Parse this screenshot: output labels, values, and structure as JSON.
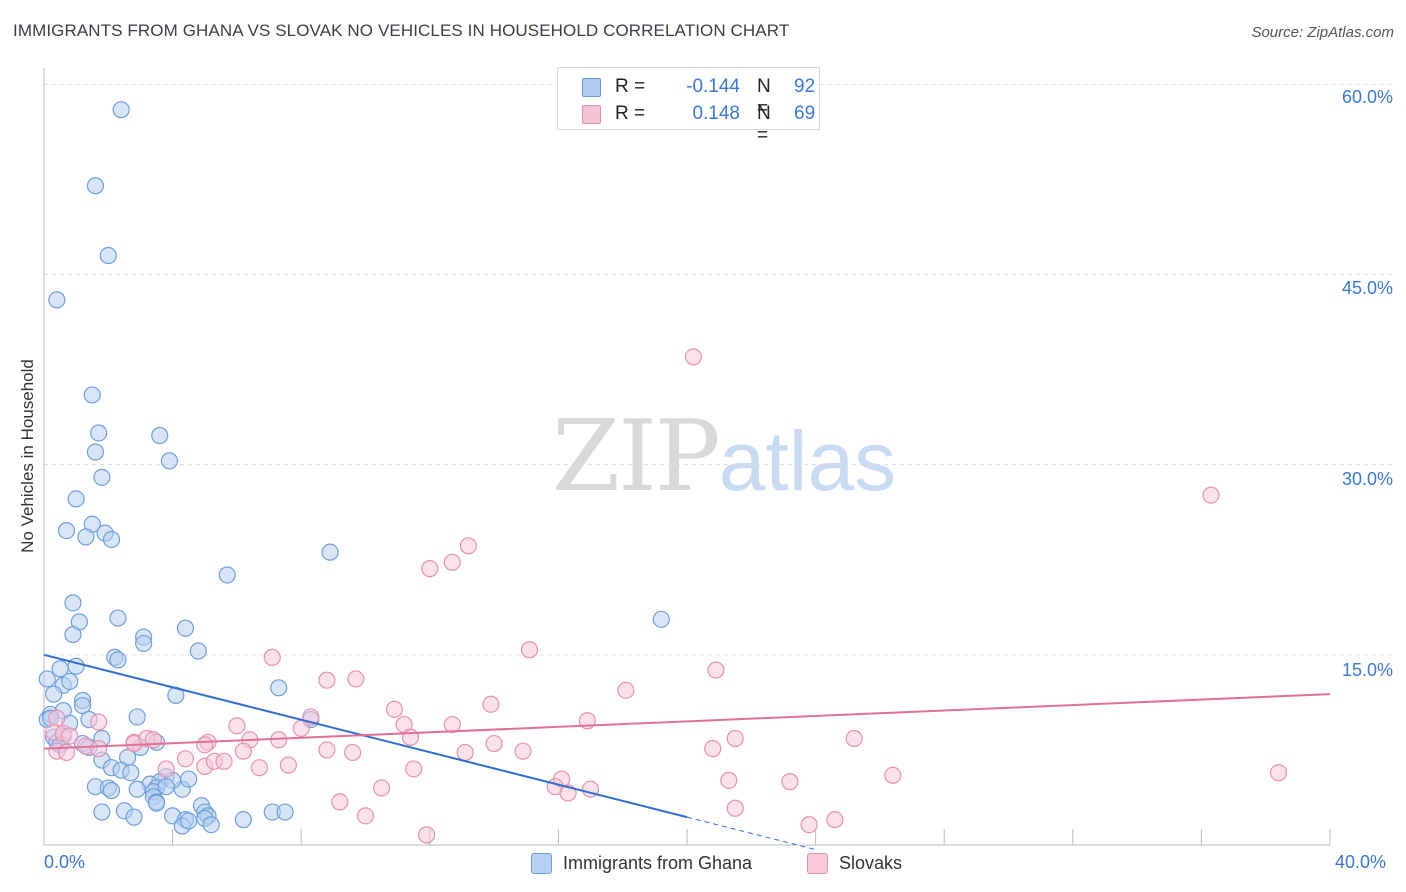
{
  "title": "IMMIGRANTS FROM GHANA VS SLOVAK NO VEHICLES IN HOUSEHOLD CORRELATION CHART",
  "source": "Source: ZipAtlas.com",
  "watermark": {
    "zip": "ZIP",
    "atlas": "atlas"
  },
  "legend_top": {
    "r_label": "R =",
    "n_label": "N =",
    "rows": [
      {
        "r": "-0.144",
        "n": "92",
        "fill": "#aecbf0",
        "stroke": "#6a9ad8"
      },
      {
        "r": "0.148",
        "n": "69",
        "fill": "#f6c3d4",
        "stroke": "#e58fb0"
      }
    ]
  },
  "colors": {
    "blue": "#6e9fde",
    "blue_fill": "#b7d0f1",
    "blue_line": "#2f6fd2",
    "pink": "#e891b1",
    "pink_fill": "#f7c9d9",
    "pink_line": "#e0709a",
    "grid": "#dcdcdc",
    "tick": "#3a78d4"
  },
  "chart_data": {
    "type": "scatter",
    "title": "IMMIGRANTS FROM GHANA VS SLOVAK NO VEHICLES IN HOUSEHOLD CORRELATION CHART",
    "xlabel": "",
    "ylabel": "No Vehicles in Household",
    "xlim": [
      0,
      40
    ],
    "ylim": [
      0,
      60.5
    ],
    "x_tick_labels": [
      "0.0%",
      "40.0%"
    ],
    "y_ticks": [
      15,
      30,
      45,
      60
    ],
    "y_tick_labels": [
      "15.0%",
      "30.0%",
      "45.0%",
      "60.0%"
    ],
    "grid": true,
    "legend_position": "bottom",
    "series": [
      {
        "name": "Immigrants from Ghana",
        "R": -0.144,
        "N": 92,
        "trend": {
          "x0": 0,
          "y0": 15.0,
          "x1": 20,
          "y1": 2.2,
          "dashed_to_x": 24
        },
        "points": [
          [
            2.4,
            58.0
          ],
          [
            1.6,
            52.0
          ],
          [
            2.0,
            46.5
          ],
          [
            0.4,
            43.0
          ],
          [
            1.5,
            35.5
          ],
          [
            1.7,
            32.5
          ],
          [
            1.6,
            31.0
          ],
          [
            1.8,
            29.0
          ],
          [
            3.6,
            32.3
          ],
          [
            3.9,
            30.3
          ],
          [
            1.0,
            27.3
          ],
          [
            0.7,
            24.8
          ],
          [
            1.5,
            25.3
          ],
          [
            1.3,
            24.3
          ],
          [
            1.9,
            24.6
          ],
          [
            2.1,
            24.1
          ],
          [
            8.9,
            23.1
          ],
          [
            5.7,
            21.3
          ],
          [
            0.9,
            19.1
          ],
          [
            1.1,
            17.6
          ],
          [
            2.3,
            17.9
          ],
          [
            4.4,
            17.1
          ],
          [
            0.9,
            16.6
          ],
          [
            3.1,
            16.4
          ],
          [
            3.1,
            15.9
          ],
          [
            4.8,
            15.3
          ],
          [
            2.2,
            14.8
          ],
          [
            2.3,
            14.6
          ],
          [
            1.0,
            14.1
          ],
          [
            0.5,
            13.9
          ],
          [
            0.1,
            13.1
          ],
          [
            0.6,
            12.6
          ],
          [
            0.8,
            12.9
          ],
          [
            0.3,
            11.9
          ],
          [
            1.2,
            11.4
          ],
          [
            1.2,
            11.0
          ],
          [
            0.2,
            10.3
          ],
          [
            0.6,
            10.6
          ],
          [
            0.1,
            9.9
          ],
          [
            0.2,
            10.0
          ],
          [
            0.8,
            9.6
          ],
          [
            1.4,
            9.9
          ],
          [
            0.3,
            8.5
          ],
          [
            0.6,
            8.6
          ],
          [
            1.8,
            8.4
          ],
          [
            0.4,
            8.1
          ],
          [
            1.2,
            8.0
          ],
          [
            0.5,
            7.9
          ],
          [
            1.4,
            7.7
          ],
          [
            2.9,
            10.1
          ],
          [
            3.5,
            8.1
          ],
          [
            3.0,
            7.7
          ],
          [
            1.8,
            6.7
          ],
          [
            2.6,
            6.9
          ],
          [
            2.1,
            6.1
          ],
          [
            2.4,
            5.9
          ],
          [
            2.7,
            5.7
          ],
          [
            3.8,
            5.4
          ],
          [
            3.6,
            5.0
          ],
          [
            3.3,
            4.8
          ],
          [
            1.6,
            4.6
          ],
          [
            2.0,
            4.5
          ],
          [
            2.1,
            4.3
          ],
          [
            2.9,
            4.4
          ],
          [
            3.5,
            4.5
          ],
          [
            3.4,
            4.2
          ],
          [
            4.3,
            4.4
          ],
          [
            3.4,
            3.8
          ],
          [
            3.5,
            3.4
          ],
          [
            3.5,
            3.3
          ],
          [
            4.9,
            3.1
          ],
          [
            5.0,
            2.6
          ],
          [
            5.1,
            2.3
          ],
          [
            1.8,
            2.6
          ],
          [
            2.5,
            2.7
          ],
          [
            2.8,
            2.2
          ],
          [
            4.0,
            2.3
          ],
          [
            4.4,
            2.0
          ],
          [
            4.3,
            1.5
          ],
          [
            4.5,
            1.9
          ],
          [
            5.0,
            2.1
          ],
          [
            5.2,
            1.6
          ],
          [
            6.2,
            2.0
          ],
          [
            7.1,
            2.6
          ],
          [
            7.5,
            2.6
          ],
          [
            4.0,
            5.1
          ],
          [
            4.5,
            5.2
          ],
          [
            4.1,
            11.8
          ],
          [
            7.3,
            12.4
          ],
          [
            8.3,
            9.9
          ],
          [
            19.2,
            17.8
          ],
          [
            3.8,
            4.6
          ]
        ]
      },
      {
        "name": "Slovaks",
        "R": 0.148,
        "N": 69,
        "trend": {
          "x0": 0,
          "y0": 7.6,
          "x1": 40,
          "y1": 11.9
        },
        "points": [
          [
            20.2,
            38.5
          ],
          [
            36.3,
            27.6
          ],
          [
            13.2,
            23.6
          ],
          [
            12.7,
            22.3
          ],
          [
            12.0,
            21.8
          ],
          [
            15.1,
            15.4
          ],
          [
            7.1,
            14.8
          ],
          [
            20.9,
            13.8
          ],
          [
            8.8,
            13.0
          ],
          [
            9.7,
            13.1
          ],
          [
            18.1,
            12.2
          ],
          [
            10.9,
            10.7
          ],
          [
            13.9,
            11.1
          ],
          [
            8.3,
            10.1
          ],
          [
            11.2,
            9.5
          ],
          [
            12.7,
            9.5
          ],
          [
            16.9,
            9.8
          ],
          [
            8.0,
            9.2
          ],
          [
            6.0,
            9.4
          ],
          [
            1.7,
            9.7
          ],
          [
            0.4,
            10.0
          ],
          [
            0.3,
            8.9
          ],
          [
            0.6,
            8.8
          ],
          [
            0.8,
            8.6
          ],
          [
            1.3,
            7.8
          ],
          [
            1.7,
            7.6
          ],
          [
            0.4,
            7.4
          ],
          [
            0.7,
            7.3
          ],
          [
            2.8,
            8.1
          ],
          [
            2.8,
            8.0
          ],
          [
            3.2,
            8.4
          ],
          [
            3.4,
            8.3
          ],
          [
            5.1,
            8.1
          ],
          [
            5.0,
            7.9
          ],
          [
            6.4,
            8.3
          ],
          [
            7.3,
            8.3
          ],
          [
            8.8,
            7.5
          ],
          [
            9.6,
            7.3
          ],
          [
            6.2,
            7.4
          ],
          [
            11.4,
            8.5
          ],
          [
            13.1,
            7.3
          ],
          [
            14.0,
            8.0
          ],
          [
            14.9,
            7.4
          ],
          [
            21.5,
            8.4
          ],
          [
            25.2,
            8.4
          ],
          [
            20.8,
            7.6
          ],
          [
            3.8,
            6.0
          ],
          [
            5.0,
            6.2
          ],
          [
            5.3,
            6.6
          ],
          [
            5.6,
            6.6
          ],
          [
            4.4,
            6.8
          ],
          [
            6.7,
            6.1
          ],
          [
            7.6,
            6.3
          ],
          [
            11.5,
            6.0
          ],
          [
            16.1,
            5.2
          ],
          [
            15.9,
            4.6
          ],
          [
            16.3,
            4.1
          ],
          [
            17.0,
            4.4
          ],
          [
            21.3,
            5.1
          ],
          [
            23.2,
            5.0
          ],
          [
            26.4,
            5.5
          ],
          [
            38.4,
            5.7
          ],
          [
            10.5,
            4.5
          ],
          [
            9.2,
            3.4
          ],
          [
            21.5,
            2.9
          ],
          [
            10.0,
            2.3
          ],
          [
            23.8,
            1.6
          ],
          [
            24.6,
            2.0
          ],
          [
            11.9,
            0.8
          ]
        ]
      }
    ]
  }
}
